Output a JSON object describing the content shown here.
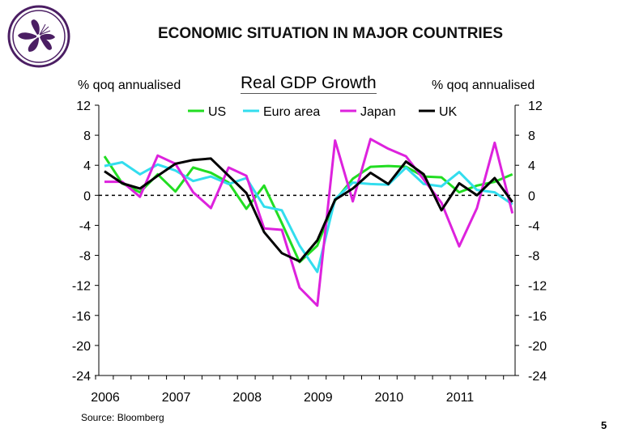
{
  "slide": {
    "title": "ECONOMIC SITUATION IN MAJOR COUNTRIES",
    "source": "Source: Bloomberg",
    "page_number": "5",
    "logo": "Hong Kong bauhinia flower emblem"
  },
  "chart_data": {
    "type": "line",
    "title": "Real GDP Growth",
    "ylabel_left": "% qoq annualised",
    "ylabel_right": "% qoq annualised",
    "ylim": [
      -24,
      12
    ],
    "yticks": [
      12,
      8,
      4,
      0,
      -4,
      -8,
      -12,
      -16,
      -20,
      -24
    ],
    "xtick_labels": [
      "2006",
      "2007",
      "2008",
      "2009",
      "2010",
      "2011"
    ],
    "x": [
      "2006Q1",
      "2006Q2",
      "2006Q3",
      "2006Q4",
      "2007Q1",
      "2007Q2",
      "2007Q3",
      "2007Q4",
      "2008Q1",
      "2008Q2",
      "2008Q3",
      "2008Q4",
      "2009Q1",
      "2009Q2",
      "2009Q3",
      "2009Q4",
      "2010Q1",
      "2010Q2",
      "2010Q3",
      "2010Q4",
      "2011Q1",
      "2011Q2",
      "2011Q3",
      "2011Q4"
    ],
    "zero_line": "dashed",
    "legend_position": "top",
    "series": [
      {
        "name": "US",
        "color": "#22dd22",
        "values": [
          5.2,
          1.6,
          0.4,
          2.8,
          0.5,
          3.7,
          3.0,
          1.7,
          -1.8,
          1.3,
          -3.7,
          -8.9,
          -6.7,
          -0.7,
          2.2,
          3.8,
          3.9,
          3.8,
          2.5,
          2.4,
          0.4,
          1.3,
          1.8,
          2.8
        ]
      },
      {
        "name": "Euro area",
        "color": "#33ddee",
        "values": [
          3.9,
          4.4,
          2.8,
          4.1,
          3.3,
          1.9,
          2.5,
          1.5,
          2.3,
          -1.5,
          -2.0,
          -6.7,
          -10.2,
          -0.5,
          1.7,
          1.5,
          1.4,
          3.7,
          1.5,
          1.2,
          3.1,
          0.7,
          0.4,
          -1.2
        ]
      },
      {
        "name": "Japan",
        "color": "#dd22dd",
        "values": [
          1.8,
          1.8,
          -0.2,
          5.3,
          4.2,
          0.4,
          -1.7,
          3.7,
          2.6,
          -4.4,
          -4.6,
          -12.3,
          -14.7,
          7.3,
          -0.8,
          7.5,
          6.2,
          5.2,
          2.1,
          -1.0,
          -6.8,
          -1.7,
          7.0,
          -2.4
        ]
      },
      {
        "name": "UK",
        "color": "#000000",
        "values": [
          3.2,
          1.6,
          0.9,
          2.6,
          4.2,
          4.7,
          4.9,
          2.6,
          0.3,
          -4.9,
          -7.7,
          -8.8,
          -6.0,
          -0.6,
          0.9,
          3.0,
          1.5,
          4.5,
          2.8,
          -2.0,
          1.6,
          0.0,
          2.3,
          -0.9
        ]
      }
    ]
  }
}
